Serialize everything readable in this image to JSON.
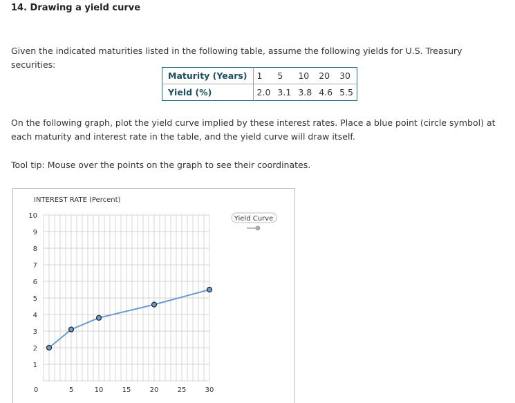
{
  "header": {
    "title": "14. Drawing a yield curve"
  },
  "intro": "Given the indicated maturities listed in the following table, assume the following yields for U.S. Treasury securities:",
  "table": {
    "row_labels": [
      "Maturity (Years)",
      "Yield (%)"
    ],
    "maturities": [
      "1",
      "5",
      "10",
      "20",
      "30"
    ],
    "yields": [
      "2.0",
      "3.1",
      "3.8",
      "4.6",
      "5.5"
    ]
  },
  "instructions": "On the following graph, plot the yield curve implied by these interest rates. Place a blue point (circle symbol) at each maturity and interest rate in the table, and the yield curve will draw itself.",
  "tooltip": "Tool tip: Mouse over the points on the graph to see their coordinates.",
  "chart_data": {
    "type": "line",
    "ylabel": "INTEREST RATE (Percent)",
    "xlim": [
      0,
      30
    ],
    "ylim": [
      0,
      10
    ],
    "xticks": [
      "0",
      "5",
      "10",
      "15",
      "20",
      "25",
      "30"
    ],
    "yticks": [
      "1",
      "2",
      "3",
      "4",
      "5",
      "6",
      "7",
      "8",
      "9",
      "10"
    ],
    "grid": true,
    "legend": "top-right",
    "series": [
      {
        "name": "Yield Curve",
        "x": [
          1,
          5,
          10,
          20,
          30
        ],
        "y": [
          2.0,
          3.1,
          3.8,
          4.6,
          5.5
        ],
        "color": "#6b9bd1"
      }
    ]
  }
}
